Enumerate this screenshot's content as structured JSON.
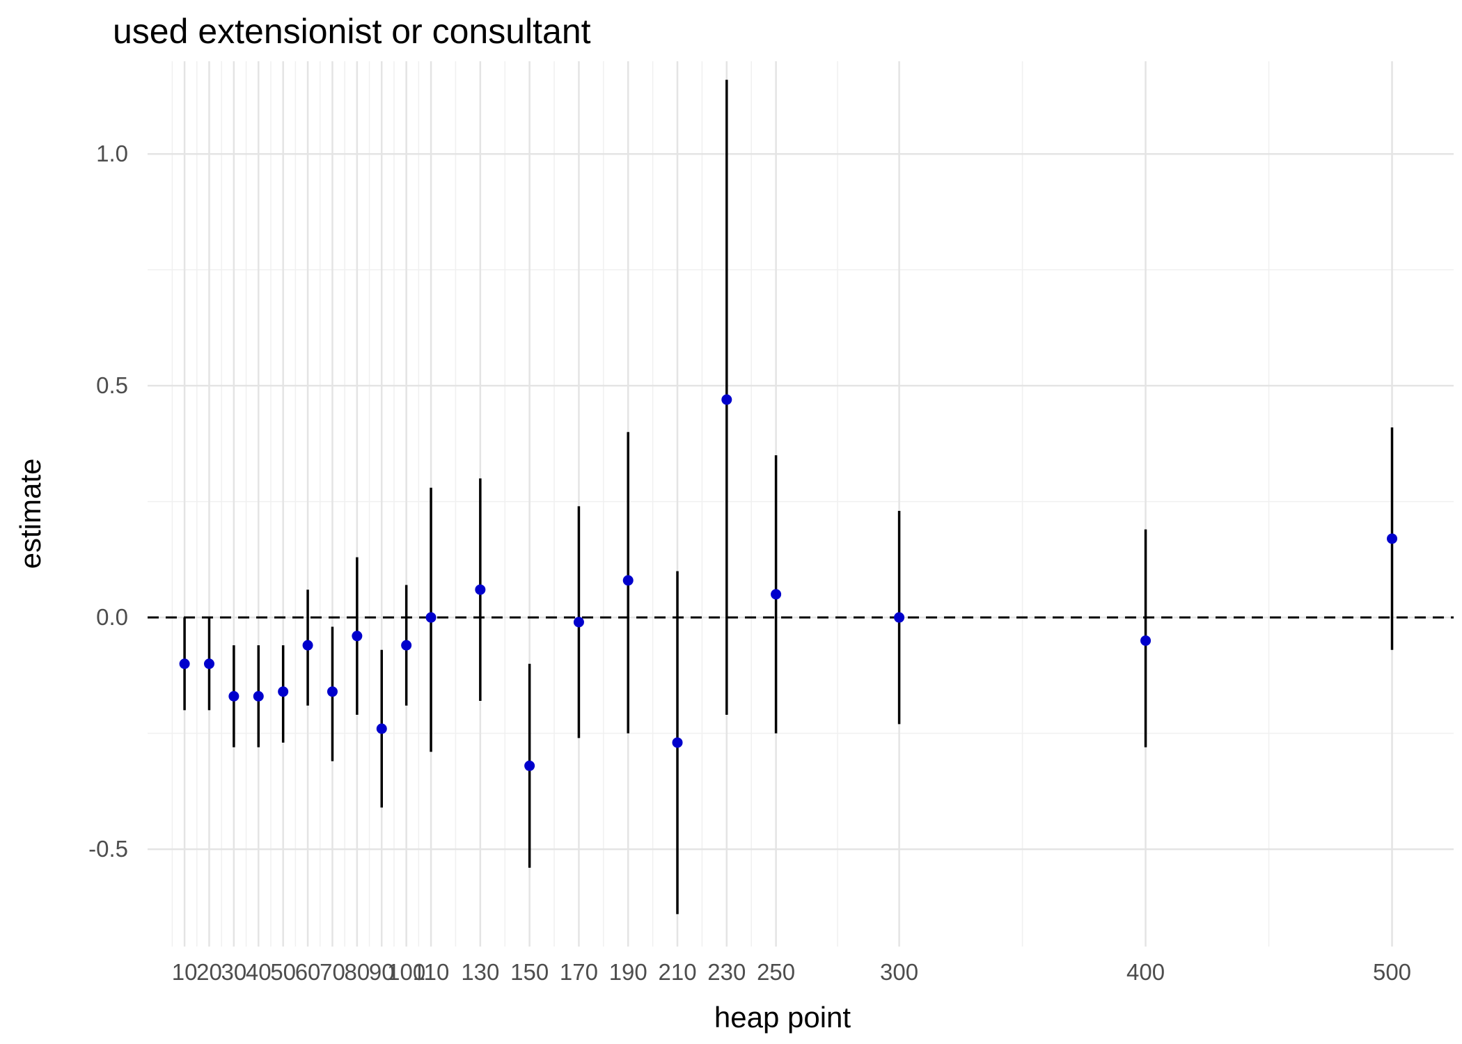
{
  "chart_data": {
    "type": "scatter",
    "title": "used extensionist or consultant",
    "xlabel": "heap point",
    "ylabel": "estimate",
    "xlim": [
      -5,
      525
    ],
    "ylim": [
      -0.71,
      1.2
    ],
    "x_ticks": [
      10,
      20,
      30,
      40,
      50,
      60,
      70,
      80,
      90,
      100,
      110,
      130,
      150,
      170,
      190,
      210,
      230,
      250,
      300,
      400,
      500
    ],
    "x_tick_labels": [
      "10",
      "20",
      "30",
      "40",
      "50",
      "60",
      "70",
      "80",
      "90",
      "100",
      "110",
      "130",
      "150",
      "170",
      "190",
      "210",
      "230",
      "250",
      "300",
      "400",
      "500"
    ],
    "y_ticks": [
      -0.5,
      0.0,
      0.5,
      1.0
    ],
    "y_tick_labels": [
      "-0.5",
      "0.0",
      "0.5",
      "1.0"
    ],
    "grid": true,
    "reference_line": 0,
    "point_color": "#0000cc",
    "line_color": "#000000",
    "points": [
      {
        "x": 10,
        "y": -0.1,
        "lo": -0.2,
        "hi": 0.0
      },
      {
        "x": 20,
        "y": -0.1,
        "lo": -0.2,
        "hi": 0.0
      },
      {
        "x": 30,
        "y": -0.17,
        "lo": -0.28,
        "hi": -0.06
      },
      {
        "x": 40,
        "y": -0.17,
        "lo": -0.28,
        "hi": -0.06
      },
      {
        "x": 50,
        "y": -0.16,
        "lo": -0.27,
        "hi": -0.06
      },
      {
        "x": 60,
        "y": -0.06,
        "lo": -0.19,
        "hi": 0.06
      },
      {
        "x": 70,
        "y": -0.16,
        "lo": -0.31,
        "hi": -0.02
      },
      {
        "x": 80,
        "y": -0.04,
        "lo": -0.21,
        "hi": 0.13
      },
      {
        "x": 90,
        "y": -0.24,
        "lo": -0.41,
        "hi": -0.07
      },
      {
        "x": 100,
        "y": -0.06,
        "lo": -0.19,
        "hi": 0.07
      },
      {
        "x": 110,
        "y": 0.0,
        "lo": -0.29,
        "hi": 0.28
      },
      {
        "x": 130,
        "y": 0.06,
        "lo": -0.18,
        "hi": 0.3
      },
      {
        "x": 150,
        "y": -0.32,
        "lo": -0.54,
        "hi": -0.1
      },
      {
        "x": 170,
        "y": -0.01,
        "lo": -0.26,
        "hi": 0.24
      },
      {
        "x": 190,
        "y": 0.08,
        "lo": -0.25,
        "hi": 0.4
      },
      {
        "x": 210,
        "y": -0.27,
        "lo": -0.64,
        "hi": 0.1
      },
      {
        "x": 230,
        "y": 0.47,
        "lo": -0.21,
        "hi": 1.16
      },
      {
        "x": 250,
        "y": 0.05,
        "lo": -0.25,
        "hi": 0.35
      },
      {
        "x": 300,
        "y": 0.0,
        "lo": -0.23,
        "hi": 0.23
      },
      {
        "x": 400,
        "y": -0.05,
        "lo": -0.28,
        "hi": 0.19
      },
      {
        "x": 500,
        "y": 0.17,
        "lo": -0.07,
        "hi": 0.41
      }
    ]
  }
}
